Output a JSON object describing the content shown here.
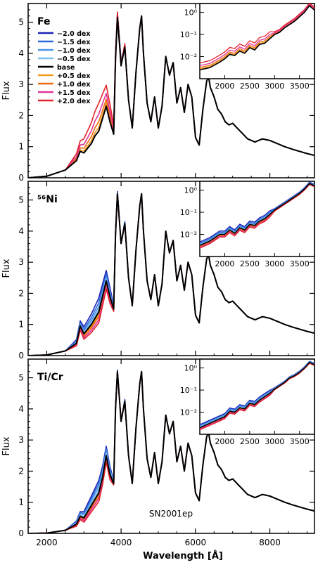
{
  "figure": {
    "annotation": "SN2001ep",
    "xlabel": "Wavelength [Å]",
    "ylabel": "Flux"
  },
  "legend": [
    {
      "label": "−2.0 dex",
      "color": "#1c22b8"
    },
    {
      "label": "−1.5 dex",
      "color": "#2f68d8"
    },
    {
      "label": "−1.0 dex",
      "color": "#4c94ea"
    },
    {
      "label": "−0.5 dex",
      "color": "#7cc0f2"
    },
    {
      "label": "base",
      "color": "#000000"
    },
    {
      "label": "+0.5 dex",
      "color": "#f39a1a"
    },
    {
      "label": "+1.0 dex",
      "color": "#ef6a10"
    },
    {
      "label": "+1.5 dex",
      "color": "#e0349a"
    },
    {
      "label": "+2.0 dex",
      "color": "#e3222a"
    }
  ],
  "chart_data": [
    {
      "type": "line",
      "panel_label": "Fe",
      "xlim": [
        1500,
        9200
      ],
      "ylim": [
        0,
        5.6
      ],
      "xticks": [
        2000,
        4000,
        6000,
        8000
      ],
      "yticks": [
        0,
        1,
        2,
        3,
        4,
        5
      ],
      "base_x": [
        1500,
        2000,
        2500,
        2800,
        2900,
        3000,
        3100,
        3200,
        3300,
        3400,
        3500,
        3600,
        3700,
        3800,
        3850,
        3900,
        3950,
        4000,
        4100,
        4200,
        4300,
        4400,
        4500,
        4550,
        4600,
        4700,
        4800,
        4900,
        5000,
        5100,
        5200,
        5300,
        5400,
        5500,
        5600,
        5700,
        5800,
        5900,
        6000,
        6100,
        6200,
        6300,
        6350,
        6400,
        6500,
        6600,
        6700,
        6800,
        6900,
        7000,
        7200,
        7400,
        7600,
        7800,
        8000,
        8200,
        8400,
        8600,
        8800,
        9000,
        9200
      ],
      "base_y": [
        0.0,
        0.05,
        0.25,
        0.55,
        0.85,
        0.8,
        0.95,
        1.1,
        1.35,
        1.5,
        1.9,
        2.3,
        1.8,
        1.4,
        3.8,
        5.15,
        4.4,
        3.6,
        4.2,
        2.5,
        1.6,
        3.4,
        4.8,
        5.2,
        4.0,
        2.4,
        1.8,
        2.6,
        1.6,
        2.3,
        3.9,
        3.3,
        3.7,
        2.4,
        2.9,
        2.1,
        3.0,
        2.6,
        1.3,
        1.05,
        2.2,
        3.1,
        3.25,
        2.9,
        2.6,
        2.2,
        2.05,
        1.8,
        1.7,
        1.75,
        1.5,
        1.25,
        1.15,
        1.25,
        1.2,
        1.1,
        1.0,
        0.92,
        0.85,
        0.78,
        0.72
      ],
      "inset": {
        "xlim": [
          1500,
          3800
        ],
        "yticks": [
          "10⁻²",
          "10⁻¹",
          "10⁰"
        ],
        "xticks": [
          2000,
          2500,
          3000,
          3500
        ],
        "base_x": [
          1500,
          1700,
          1900,
          2000,
          2100,
          2200,
          2300,
          2400,
          2500,
          2600,
          2700,
          2800,
          2900,
          3000,
          3100,
          3200,
          3300,
          3400,
          3500,
          3600,
          3700,
          3800
        ],
        "base_logy": [
          -2.6,
          -2.5,
          -2.25,
          -2.1,
          -1.9,
          -1.95,
          -1.75,
          -1.85,
          -1.6,
          -1.7,
          -1.45,
          -1.4,
          -1.2,
          -1.0,
          -0.9,
          -0.7,
          -0.55,
          -0.4,
          -0.2,
          0.0,
          0.3,
          0.1
        ]
      },
      "series": [
        {
          "offset": -2.0,
          "vis": 0.0
        },
        {
          "offset": -1.5,
          "vis": 0.0
        },
        {
          "offset": -1.0,
          "vis": 0.0
        },
        {
          "offset": -0.5,
          "vis": 0.0
        },
        {
          "offset": 0.0,
          "vis": 0.0
        },
        {
          "offset": 0.5,
          "vis": 0.12
        },
        {
          "offset": 1.0,
          "vis": 0.3
        },
        {
          "offset": 1.5,
          "vis": 0.55
        },
        {
          "offset": 2.0,
          "vis": 0.9
        }
      ]
    },
    {
      "type": "line",
      "panel_label": "⁵⁶Ni",
      "xlim": [
        1500,
        9200
      ],
      "ylim": [
        0,
        5.6
      ],
      "xticks": [
        2000,
        4000,
        6000,
        8000
      ],
      "yticks": [
        0,
        1,
        2,
        3,
        4,
        5
      ],
      "base_x": [
        1500,
        2000,
        2500,
        2800,
        2900,
        3000,
        3100,
        3200,
        3300,
        3400,
        3500,
        3600,
        3700,
        3800,
        3850,
        3900,
        3950,
        4000,
        4100,
        4200,
        4300,
        4400,
        4500,
        4550,
        4600,
        4700,
        4800,
        4900,
        5000,
        5100,
        5200,
        5300,
        5400,
        5500,
        5600,
        5700,
        5800,
        5900,
        6000,
        6100,
        6200,
        6300,
        6350,
        6400,
        6500,
        6600,
        6700,
        6800,
        6900,
        7000,
        7200,
        7400,
        7600,
        7800,
        8000,
        8200,
        8400,
        8600,
        8800,
        9000,
        9200
      ],
      "base_y": [
        0.0,
        0.02,
        0.15,
        0.4,
        0.95,
        0.7,
        0.85,
        1.0,
        1.2,
        1.4,
        1.9,
        2.4,
        1.9,
        1.5,
        3.9,
        5.2,
        4.4,
        3.6,
        4.25,
        2.5,
        1.6,
        3.4,
        4.8,
        5.2,
        4.0,
        2.4,
        1.8,
        2.6,
        1.6,
        2.3,
        4.0,
        3.3,
        3.7,
        2.4,
        2.9,
        2.1,
        3.0,
        2.6,
        1.3,
        1.05,
        2.2,
        3.1,
        3.25,
        2.9,
        2.6,
        2.2,
        2.05,
        1.8,
        1.7,
        1.75,
        1.5,
        1.25,
        1.15,
        1.25,
        1.2,
        1.1,
        1.0,
        0.92,
        0.85,
        0.78,
        0.72
      ],
      "inset": {
        "xlim": [
          1500,
          3800
        ],
        "yticks": [
          "10⁻²",
          "10⁻¹",
          "10⁰"
        ],
        "xticks": [
          2000,
          2500,
          3000,
          3500
        ],
        "base_x": [
          1500,
          1700,
          1900,
          2000,
          2100,
          2200,
          2300,
          2400,
          2500,
          2600,
          2700,
          2800,
          2900,
          3000,
          3100,
          3200,
          3300,
          3400,
          3500,
          3600,
          3700,
          3800
        ],
        "base_logy": [
          -2.5,
          -2.3,
          -2.0,
          -2.0,
          -1.8,
          -1.95,
          -1.7,
          -1.8,
          -1.55,
          -1.6,
          -1.4,
          -1.3,
          -1.1,
          -0.9,
          -0.75,
          -0.6,
          -0.45,
          -0.3,
          -0.15,
          0.05,
          0.3,
          0.2
        ]
      },
      "series": [
        {
          "offset": -2.0,
          "vis": 0.45
        },
        {
          "offset": -1.5,
          "vis": 0.3
        },
        {
          "offset": -1.0,
          "vis": 0.18
        },
        {
          "offset": -0.5,
          "vis": 0.08
        },
        {
          "offset": 0.0,
          "vis": 0.0
        },
        {
          "offset": 0.5,
          "vis": -0.08
        },
        {
          "offset": 1.0,
          "vis": -0.15
        },
        {
          "offset": 1.5,
          "vis": -0.25
        },
        {
          "offset": 2.0,
          "vis": -0.35
        }
      ]
    },
    {
      "type": "line",
      "panel_label": "Ti/Cr",
      "xlim": [
        1500,
        9200
      ],
      "ylim": [
        0,
        5.6
      ],
      "xticks": [
        2000,
        4000,
        6000,
        8000
      ],
      "yticks": [
        0,
        1,
        2,
        3,
        4,
        5
      ],
      "base_x": [
        1500,
        2000,
        2500,
        2800,
        2900,
        3000,
        3100,
        3200,
        3300,
        3400,
        3500,
        3600,
        3700,
        3800,
        3850,
        3900,
        3950,
        4000,
        4100,
        4200,
        4300,
        4400,
        4500,
        4550,
        4600,
        4700,
        4800,
        4900,
        5000,
        5100,
        5200,
        5300,
        5400,
        5500,
        5600,
        5700,
        5800,
        5900,
        6000,
        6100,
        6200,
        6300,
        6350,
        6400,
        6500,
        6600,
        6700,
        6800,
        6900,
        7000,
        7200,
        7400,
        7600,
        7800,
        8000,
        8200,
        8400,
        8600,
        8800,
        9000,
        9200
      ],
      "base_y": [
        0.0,
        0.01,
        0.1,
        0.3,
        0.55,
        0.5,
        0.7,
        0.9,
        1.1,
        1.3,
        1.8,
        2.5,
        1.9,
        1.6,
        4.0,
        5.2,
        4.4,
        3.6,
        4.25,
        2.5,
        1.6,
        3.4,
        4.8,
        5.2,
        4.0,
        2.4,
        1.8,
        2.6,
        1.6,
        2.3,
        3.8,
        3.2,
        3.6,
        2.3,
        2.8,
        2.0,
        2.9,
        2.5,
        1.3,
        1.05,
        2.2,
        3.1,
        3.25,
        2.9,
        2.6,
        2.2,
        2.05,
        1.8,
        1.7,
        1.75,
        1.5,
        1.25,
        1.15,
        1.25,
        1.2,
        1.1,
        1.0,
        0.92,
        0.85,
        0.78,
        0.72
      ],
      "inset": {
        "xlim": [
          1500,
          3800
        ],
        "yticks": [
          "10⁻²",
          "10⁻¹",
          "10⁰"
        ],
        "xticks": [
          2000,
          2500,
          3000,
          3500
        ],
        "base_x": [
          1500,
          1700,
          1900,
          2000,
          2100,
          2200,
          2300,
          2400,
          2500,
          2600,
          2700,
          2800,
          2900,
          3000,
          3100,
          3200,
          3300,
          3400,
          3500,
          3600,
          3700,
          3800
        ],
        "base_logy": [
          -2.7,
          -2.5,
          -2.3,
          -2.2,
          -1.95,
          -2.0,
          -1.8,
          -1.85,
          -1.6,
          -1.65,
          -1.45,
          -1.3,
          -1.15,
          -0.95,
          -0.8,
          -0.65,
          -0.45,
          -0.35,
          -0.2,
          0.0,
          0.25,
          0.15
        ]
      },
      "series": [
        {
          "offset": -2.0,
          "vis": 0.4
        },
        {
          "offset": -1.5,
          "vis": 0.3
        },
        {
          "offset": -1.0,
          "vis": 0.2
        },
        {
          "offset": -0.5,
          "vis": 0.1
        },
        {
          "offset": 0.0,
          "vis": 0.0
        },
        {
          "offset": 0.5,
          "vis": -0.05
        },
        {
          "offset": 1.0,
          "vis": -0.1
        },
        {
          "offset": 1.5,
          "vis": -0.18
        },
        {
          "offset": 2.0,
          "vis": -0.28
        }
      ]
    }
  ]
}
